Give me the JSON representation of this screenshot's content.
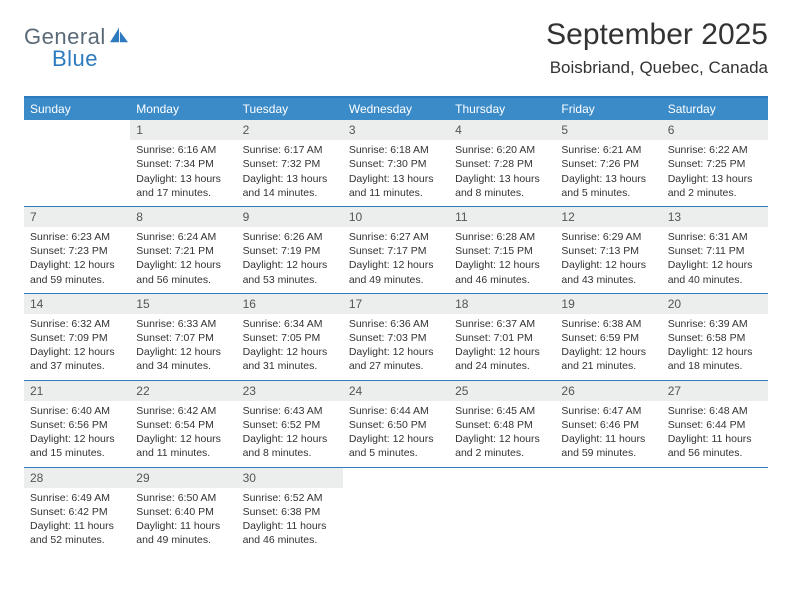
{
  "logo": {
    "word1": "General",
    "word2": "Blue",
    "icon_color": "#2d7abf",
    "text_gray": "#5a6a78"
  },
  "header": {
    "title": "September 2025",
    "location": "Boisbriand, Quebec, Canada"
  },
  "colors": {
    "header_bar": "#3b8bc9",
    "header_border": "#2d7abf",
    "row_divider": "#2d7abf",
    "day_num_bg": "#eceded",
    "text": "#333333",
    "white": "#ffffff"
  },
  "weekdays": [
    "Sunday",
    "Monday",
    "Tuesday",
    "Wednesday",
    "Thursday",
    "Friday",
    "Saturday"
  ],
  "weeks": [
    [
      {
        "day": "",
        "sunrise": "",
        "sunset": "",
        "daylight": ""
      },
      {
        "day": "1",
        "sunrise": "Sunrise: 6:16 AM",
        "sunset": "Sunset: 7:34 PM",
        "daylight": "Daylight: 13 hours and 17 minutes."
      },
      {
        "day": "2",
        "sunrise": "Sunrise: 6:17 AM",
        "sunset": "Sunset: 7:32 PM",
        "daylight": "Daylight: 13 hours and 14 minutes."
      },
      {
        "day": "3",
        "sunrise": "Sunrise: 6:18 AM",
        "sunset": "Sunset: 7:30 PM",
        "daylight": "Daylight: 13 hours and 11 minutes."
      },
      {
        "day": "4",
        "sunrise": "Sunrise: 6:20 AM",
        "sunset": "Sunset: 7:28 PM",
        "daylight": "Daylight: 13 hours and 8 minutes."
      },
      {
        "day": "5",
        "sunrise": "Sunrise: 6:21 AM",
        "sunset": "Sunset: 7:26 PM",
        "daylight": "Daylight: 13 hours and 5 minutes."
      },
      {
        "day": "6",
        "sunrise": "Sunrise: 6:22 AM",
        "sunset": "Sunset: 7:25 PM",
        "daylight": "Daylight: 13 hours and 2 minutes."
      }
    ],
    [
      {
        "day": "7",
        "sunrise": "Sunrise: 6:23 AM",
        "sunset": "Sunset: 7:23 PM",
        "daylight": "Daylight: 12 hours and 59 minutes."
      },
      {
        "day": "8",
        "sunrise": "Sunrise: 6:24 AM",
        "sunset": "Sunset: 7:21 PM",
        "daylight": "Daylight: 12 hours and 56 minutes."
      },
      {
        "day": "9",
        "sunrise": "Sunrise: 6:26 AM",
        "sunset": "Sunset: 7:19 PM",
        "daylight": "Daylight: 12 hours and 53 minutes."
      },
      {
        "day": "10",
        "sunrise": "Sunrise: 6:27 AM",
        "sunset": "Sunset: 7:17 PM",
        "daylight": "Daylight: 12 hours and 49 minutes."
      },
      {
        "day": "11",
        "sunrise": "Sunrise: 6:28 AM",
        "sunset": "Sunset: 7:15 PM",
        "daylight": "Daylight: 12 hours and 46 minutes."
      },
      {
        "day": "12",
        "sunrise": "Sunrise: 6:29 AM",
        "sunset": "Sunset: 7:13 PM",
        "daylight": "Daylight: 12 hours and 43 minutes."
      },
      {
        "day": "13",
        "sunrise": "Sunrise: 6:31 AM",
        "sunset": "Sunset: 7:11 PM",
        "daylight": "Daylight: 12 hours and 40 minutes."
      }
    ],
    [
      {
        "day": "14",
        "sunrise": "Sunrise: 6:32 AM",
        "sunset": "Sunset: 7:09 PM",
        "daylight": "Daylight: 12 hours and 37 minutes."
      },
      {
        "day": "15",
        "sunrise": "Sunrise: 6:33 AM",
        "sunset": "Sunset: 7:07 PM",
        "daylight": "Daylight: 12 hours and 34 minutes."
      },
      {
        "day": "16",
        "sunrise": "Sunrise: 6:34 AM",
        "sunset": "Sunset: 7:05 PM",
        "daylight": "Daylight: 12 hours and 31 minutes."
      },
      {
        "day": "17",
        "sunrise": "Sunrise: 6:36 AM",
        "sunset": "Sunset: 7:03 PM",
        "daylight": "Daylight: 12 hours and 27 minutes."
      },
      {
        "day": "18",
        "sunrise": "Sunrise: 6:37 AM",
        "sunset": "Sunset: 7:01 PM",
        "daylight": "Daylight: 12 hours and 24 minutes."
      },
      {
        "day": "19",
        "sunrise": "Sunrise: 6:38 AM",
        "sunset": "Sunset: 6:59 PM",
        "daylight": "Daylight: 12 hours and 21 minutes."
      },
      {
        "day": "20",
        "sunrise": "Sunrise: 6:39 AM",
        "sunset": "Sunset: 6:58 PM",
        "daylight": "Daylight: 12 hours and 18 minutes."
      }
    ],
    [
      {
        "day": "21",
        "sunrise": "Sunrise: 6:40 AM",
        "sunset": "Sunset: 6:56 PM",
        "daylight": "Daylight: 12 hours and 15 minutes."
      },
      {
        "day": "22",
        "sunrise": "Sunrise: 6:42 AM",
        "sunset": "Sunset: 6:54 PM",
        "daylight": "Daylight: 12 hours and 11 minutes."
      },
      {
        "day": "23",
        "sunrise": "Sunrise: 6:43 AM",
        "sunset": "Sunset: 6:52 PM",
        "daylight": "Daylight: 12 hours and 8 minutes."
      },
      {
        "day": "24",
        "sunrise": "Sunrise: 6:44 AM",
        "sunset": "Sunset: 6:50 PM",
        "daylight": "Daylight: 12 hours and 5 minutes."
      },
      {
        "day": "25",
        "sunrise": "Sunrise: 6:45 AM",
        "sunset": "Sunset: 6:48 PM",
        "daylight": "Daylight: 12 hours and 2 minutes."
      },
      {
        "day": "26",
        "sunrise": "Sunrise: 6:47 AM",
        "sunset": "Sunset: 6:46 PM",
        "daylight": "Daylight: 11 hours and 59 minutes."
      },
      {
        "day": "27",
        "sunrise": "Sunrise: 6:48 AM",
        "sunset": "Sunset: 6:44 PM",
        "daylight": "Daylight: 11 hours and 56 minutes."
      }
    ],
    [
      {
        "day": "28",
        "sunrise": "Sunrise: 6:49 AM",
        "sunset": "Sunset: 6:42 PM",
        "daylight": "Daylight: 11 hours and 52 minutes."
      },
      {
        "day": "29",
        "sunrise": "Sunrise: 6:50 AM",
        "sunset": "Sunset: 6:40 PM",
        "daylight": "Daylight: 11 hours and 49 minutes."
      },
      {
        "day": "30",
        "sunrise": "Sunrise: 6:52 AM",
        "sunset": "Sunset: 6:38 PM",
        "daylight": "Daylight: 11 hours and 46 minutes."
      },
      {
        "day": "",
        "sunrise": "",
        "sunset": "",
        "daylight": ""
      },
      {
        "day": "",
        "sunrise": "",
        "sunset": "",
        "daylight": ""
      },
      {
        "day": "",
        "sunrise": "",
        "sunset": "",
        "daylight": ""
      },
      {
        "day": "",
        "sunrise": "",
        "sunset": "",
        "daylight": ""
      }
    ]
  ]
}
